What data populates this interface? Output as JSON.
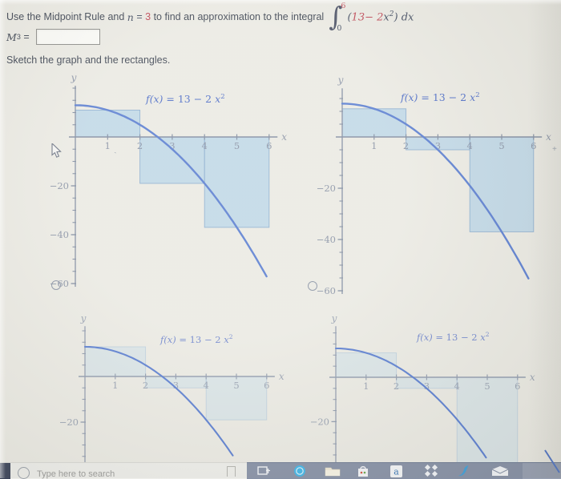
{
  "question": {
    "prefix": "Use the Midpoint Rule and",
    "n_var": "n",
    "eq": "=",
    "n_val": "3",
    "middle": "to find an approximation to the integral",
    "int_sign": "∫",
    "int_upper": "6",
    "int_lower": "0",
    "lparen": "(",
    "term1": "13−",
    "coef": "2",
    "var": "x",
    "power": "2",
    "rparen": ")",
    "dx": "dx",
    "m_label": "M",
    "m_sub": "3",
    "m_eq": "=",
    "answer_value": "",
    "sketch_prompt": "Sketch the graph and the rectangles."
  },
  "fx_title": {
    "fname": "f(x)",
    "eq": " = ",
    "body": "13 − 2 ",
    "var": "x",
    "sup": "2"
  },
  "axis_letters": {
    "x": "x",
    "y": "y"
  },
  "colors": {
    "accent_red": "#bf4755",
    "curve_blue": "#5b7ed0",
    "title_blue": "#4e6dc6",
    "title_blue_faint": "#7288cd",
    "axis_gray": "#818ca0",
    "axis_gray_faint": "#929cae",
    "tick_label": "#8a93a5",
    "tick_label_faint": "#9aa3b2",
    "rect_fill": "rgba(168,205,232,0.62)",
    "rect_stroke": "rgba(138,172,205,0.95)",
    "rect_fill_faint": "rgba(185,214,236,0.32)",
    "rect_stroke_faint": "rgba(150,182,212,0.45)",
    "taskbar_slate": "#8791a6",
    "cortana_blue": "#41b4e6"
  },
  "chart_data": [
    {
      "id": "option-1-top-left",
      "type": "line",
      "title": "f(x) = 13 − 2 x²",
      "function": "f(x) = 13 − 2x²",
      "x_range": [
        0,
        6
      ],
      "x_ticks": [
        1,
        2,
        3,
        4,
        5,
        6
      ],
      "y_tick_labels": [
        "-20",
        "-40",
        "-60"
      ],
      "y_minor_step": 5,
      "rectangles": [
        {
          "interval": [
            0,
            2
          ],
          "height": 11
        },
        {
          "interval": [
            2,
            4
          ],
          "height": -19
        },
        {
          "interval": [
            4,
            6
          ],
          "height": -37
        }
      ],
      "curve_x_to": 5.92,
      "has_radio_button": true,
      "radio_selected": false
    },
    {
      "id": "option-2-top-right",
      "type": "line",
      "title": "f(x) = 13 − 2 x²",
      "function": "f(x) = 13 − 2x²",
      "x_range": [
        0,
        6
      ],
      "x_ticks": [
        1,
        2,
        3,
        4,
        5,
        6
      ],
      "y_tick_labels": [
        "-20",
        "-40",
        "-60"
      ],
      "y_minor_step": 5,
      "rectangles": [
        {
          "interval": [
            0,
            2
          ],
          "height": 11
        },
        {
          "interval": [
            2,
            4
          ],
          "height": -5
        },
        {
          "interval": [
            4,
            6
          ],
          "height": -37
        }
      ],
      "curve_x_to": 5.9,
      "has_radio_button": true,
      "radio_selected": false
    },
    {
      "id": "option-3-bottom-left",
      "type": "line",
      "title": "f(x) = 13 − 2 x²",
      "function": "f(x) = 13 − 2x²",
      "x_range": [
        0,
        6
      ],
      "x_ticks": [
        1,
        2,
        3,
        4,
        5,
        6
      ],
      "y_tick_labels": [
        "-20"
      ],
      "y_minor_step": 5,
      "rectangles": [
        {
          "interval": [
            0,
            2
          ],
          "height": 13
        },
        {
          "interval": [
            2,
            4
          ],
          "height": -5
        },
        {
          "interval": [
            4,
            6
          ],
          "height": -19
        }
      ],
      "curve_x_to": 4.9,
      "has_radio_button": false,
      "radio_selected": false,
      "faint": true,
      "clipped_bottom": true
    },
    {
      "id": "option-4-bottom-right",
      "type": "line",
      "title": "f(x) = 13 − 2 x²",
      "function": "f(x) = 13 − 2x²",
      "x_range": [
        0,
        6
      ],
      "x_ticks": [
        1,
        2,
        3,
        4,
        5,
        6
      ],
      "y_tick_labels": [
        "-20"
      ],
      "y_minor_step": 5,
      "rectangles": [
        {
          "interval": [
            0,
            2
          ],
          "height": 11
        },
        {
          "interval": [
            2,
            4
          ],
          "height": -5
        },
        {
          "interval": [
            4,
            6
          ],
          "height": -44
        }
      ],
      "curve_x_to": 4.98,
      "has_radio_button": false,
      "radio_selected": false,
      "faint": true,
      "clipped_bottom": true
    }
  ],
  "taskbar": {
    "search_placeholder": "Type here to search",
    "icons": [
      {
        "name": "task-view-icon"
      },
      {
        "name": "cortana-icon"
      },
      {
        "name": "file-explorer-folder-icon"
      },
      {
        "name": "store-bag-icon"
      },
      {
        "name": "amazon-a-icon"
      },
      {
        "name": "diamonds-icon"
      },
      {
        "name": "brush-icon"
      },
      {
        "name": "mail-icon"
      }
    ]
  },
  "artifacts": {
    "plus_speck": "+",
    "tick_speck": "`"
  }
}
